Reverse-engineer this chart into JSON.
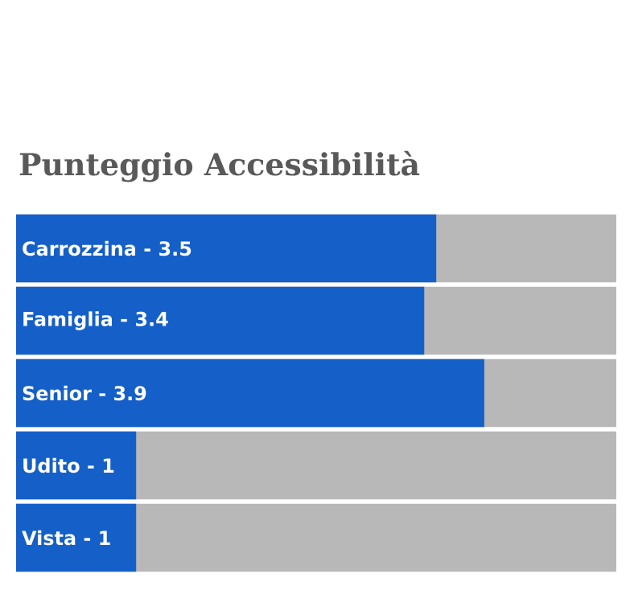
{
  "chart_data": {
    "type": "bar",
    "orientation": "horizontal",
    "title": "Punteggio Accessibilità",
    "categories": [
      "Carrozzina -",
      "Famiglia -",
      "Senior -",
      "Udito -",
      "Vista -"
    ],
    "values": [
      3.5,
      3.4,
      3.9,
      1,
      1
    ],
    "value_labels": [
      "3.5",
      "3.4",
      "3.9",
      "1",
      "1"
    ],
    "color": "#1560c8",
    "xlim": [
      0,
      5
    ]
  }
}
